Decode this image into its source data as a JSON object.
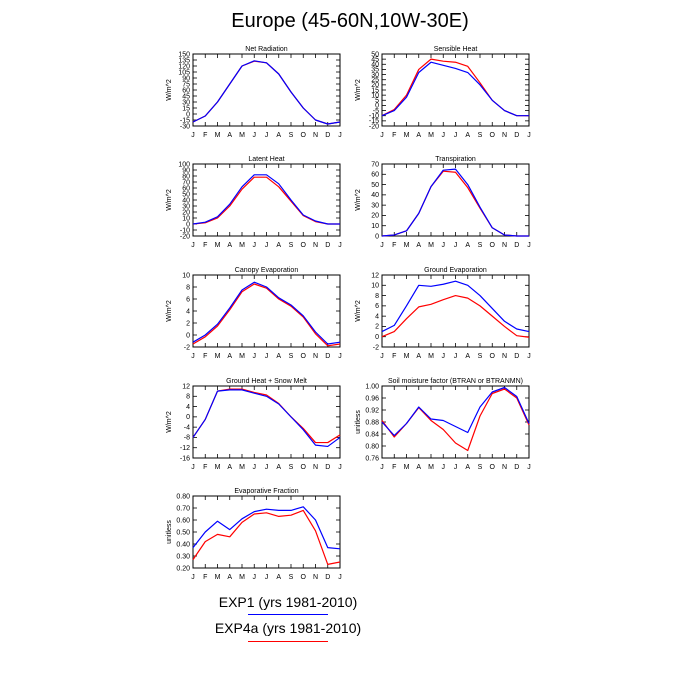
{
  "title": "Europe (45-60N,10W-30E)",
  "months": [
    "J",
    "F",
    "M",
    "A",
    "M",
    "J",
    "J",
    "A",
    "S",
    "O",
    "N",
    "D",
    "J"
  ],
  "colors": {
    "exp1": "#0000ff",
    "exp4a": "#ff0000"
  },
  "legend": [
    {
      "label": "EXP1 (yrs 1981-2010)",
      "color": "#0000ff"
    },
    {
      "label": "EXP4a (yrs 1981-2010)",
      "color": "#ff0000"
    }
  ],
  "chart_data": [
    {
      "type": "line",
      "title": "Net Radiation",
      "ylabel": "W/m^2",
      "ylim": [
        -30,
        150
      ],
      "yticks": [
        -30,
        -15,
        0,
        15,
        30,
        45,
        60,
        75,
        90,
        105,
        120,
        135,
        150
      ],
      "series": [
        {
          "name": "EXP1 (yrs 1981-2010)",
          "values": [
            -20,
            -5,
            30,
            75,
            120,
            133,
            128,
            100,
            55,
            15,
            -15,
            -25,
            -20
          ]
        },
        {
          "name": "EXP4a (yrs 1981-2010)",
          "values": [
            -20,
            -5,
            30,
            75,
            120,
            132,
            128,
            100,
            55,
            15,
            -15,
            -25,
            -20
          ]
        }
      ]
    },
    {
      "type": "line",
      "title": "Sensible Heat",
      "ylabel": "W/m^2",
      "ylim": [
        -20,
        50
      ],
      "yticks": [
        -20,
        -15,
        -10,
        -5,
        0,
        5,
        10,
        15,
        20,
        25,
        30,
        35,
        40,
        45,
        50
      ],
      "series": [
        {
          "name": "EXP1 (yrs 1981-2010)",
          "values": [
            -10,
            -5,
            8,
            32,
            42,
            39,
            36,
            32,
            20,
            5,
            -5,
            -10,
            -10
          ]
        },
        {
          "name": "EXP4a (yrs 1981-2010)",
          "values": [
            -10,
            -4,
            10,
            35,
            45,
            43,
            42,
            38,
            22,
            5,
            -5,
            -10,
            -10
          ]
        }
      ]
    },
    {
      "type": "line",
      "title": "Latent Heat",
      "ylabel": "W/m^2",
      "ylim": [
        -20,
        100
      ],
      "yticks": [
        -20,
        -10,
        0,
        10,
        20,
        30,
        40,
        50,
        60,
        70,
        80,
        90,
        100
      ],
      "series": [
        {
          "name": "EXP1 (yrs 1981-2010)",
          "values": [
            0,
            3,
            12,
            33,
            62,
            82,
            82,
            67,
            40,
            15,
            5,
            0,
            0
          ]
        },
        {
          "name": "EXP4a (yrs 1981-2010)",
          "values": [
            0,
            2,
            10,
            30,
            58,
            78,
            78,
            62,
            38,
            14,
            4,
            0,
            0
          ]
        }
      ]
    },
    {
      "type": "line",
      "title": "Transpiration",
      "ylabel": "W/m^2",
      "ylim": [
        0,
        70
      ],
      "yticks": [
        0,
        10,
        20,
        30,
        40,
        50,
        60,
        70
      ],
      "series": [
        {
          "name": "EXP1 (yrs 1981-2010)",
          "values": [
            0,
            1,
            5,
            22,
            48,
            64,
            65,
            50,
            28,
            8,
            1,
            0,
            0
          ]
        },
        {
          "name": "EXP4a (yrs 1981-2010)",
          "values": [
            0,
            1,
            5,
            22,
            48,
            63,
            62,
            47,
            27,
            8,
            1,
            0,
            0
          ]
        }
      ]
    },
    {
      "type": "line",
      "title": "Canopy Evaporation",
      "ylabel": "W/m^2",
      "ylim": [
        -2,
        10
      ],
      "yticks": [
        -2,
        0,
        2,
        4,
        6,
        8,
        10
      ],
      "series": [
        {
          "name": "EXP1 (yrs 1981-2010)",
          "values": [
            -1.2,
            0,
            1.8,
            4.5,
            7.5,
            8.8,
            8.0,
            6.2,
            5.0,
            3.2,
            0.5,
            -1.5,
            -1.2
          ]
        },
        {
          "name": "EXP4a (yrs 1981-2010)",
          "values": [
            -1.5,
            -0.3,
            1.5,
            4.2,
            7.2,
            8.5,
            7.8,
            6.0,
            4.8,
            3.0,
            0.2,
            -1.8,
            -1.5
          ]
        }
      ]
    },
    {
      "type": "line",
      "title": "Ground Evaporation",
      "ylabel": "W/m^2",
      "ylim": [
        -2,
        12
      ],
      "yticks": [
        -2,
        0,
        2,
        4,
        6,
        8,
        10,
        12
      ],
      "series": [
        {
          "name": "EXP1 (yrs 1981-2010)",
          "values": [
            1,
            2.2,
            6,
            10,
            9.8,
            10.2,
            10.8,
            10,
            8,
            5.5,
            3,
            1.5,
            1
          ]
        },
        {
          "name": "EXP4a (yrs 1981-2010)",
          "values": [
            0,
            1,
            3.5,
            5.8,
            6.3,
            7.2,
            8,
            7.5,
            6,
            4,
            2,
            0.2,
            -0.1
          ]
        }
      ]
    },
    {
      "type": "line",
      "title": "Ground Heat + Snow Melt",
      "ylabel": "W/m^2",
      "ylim": [
        -16,
        12
      ],
      "yticks": [
        -16,
        -12,
        -8,
        -4,
        0,
        4,
        8,
        12
      ],
      "series": [
        {
          "name": "EXP1 (yrs 1981-2010)",
          "values": [
            -8,
            -1,
            10,
            10.5,
            10.5,
            9.2,
            8,
            5,
            0,
            -5,
            -11,
            -11.5,
            -8
          ]
        },
        {
          "name": "EXP4a (yrs 1981-2010)",
          "values": [
            -8,
            -1,
            10,
            10.8,
            10.8,
            9.5,
            8.5,
            5.2,
            0,
            -4.5,
            -10,
            -10,
            -7
          ]
        }
      ]
    },
    {
      "type": "line",
      "title": "Soil moisture factor (BTRAN or BTRANMN)",
      "ylabel": "unitless",
      "ylim": [
        0.76,
        1.0
      ],
      "yticks": [
        0.76,
        0.8,
        0.84,
        0.88,
        0.92,
        0.96,
        1.0
      ],
      "series": [
        {
          "name": "EXP1 (yrs 1981-2010)",
          "values": [
            0.88,
            0.835,
            0.875,
            0.93,
            0.89,
            0.885,
            0.865,
            0.845,
            0.93,
            0.98,
            0.995,
            0.965,
            0.875
          ]
        },
        {
          "name": "EXP4a (yrs 1981-2010)",
          "values": [
            0.885,
            0.83,
            0.875,
            0.928,
            0.885,
            0.855,
            0.81,
            0.785,
            0.9,
            0.975,
            0.99,
            0.96,
            0.87
          ]
        }
      ]
    },
    {
      "type": "line",
      "title": "Evaporative Fraction",
      "ylabel": "unitless",
      "ylim": [
        0.2,
        0.8
      ],
      "yticks": [
        0.2,
        0.3,
        0.4,
        0.5,
        0.6,
        0.7,
        0.8
      ],
      "series": [
        {
          "name": "EXP1 (yrs 1981-2010)",
          "values": [
            0.37,
            0.5,
            0.59,
            0.52,
            0.61,
            0.67,
            0.69,
            0.68,
            0.68,
            0.71,
            0.6,
            0.37,
            0.36
          ]
        },
        {
          "name": "EXP4a (yrs 1981-2010)",
          "values": [
            0.27,
            0.42,
            0.48,
            0.46,
            0.58,
            0.65,
            0.66,
            0.63,
            0.64,
            0.68,
            0.51,
            0.23,
            0.25
          ]
        }
      ]
    }
  ]
}
